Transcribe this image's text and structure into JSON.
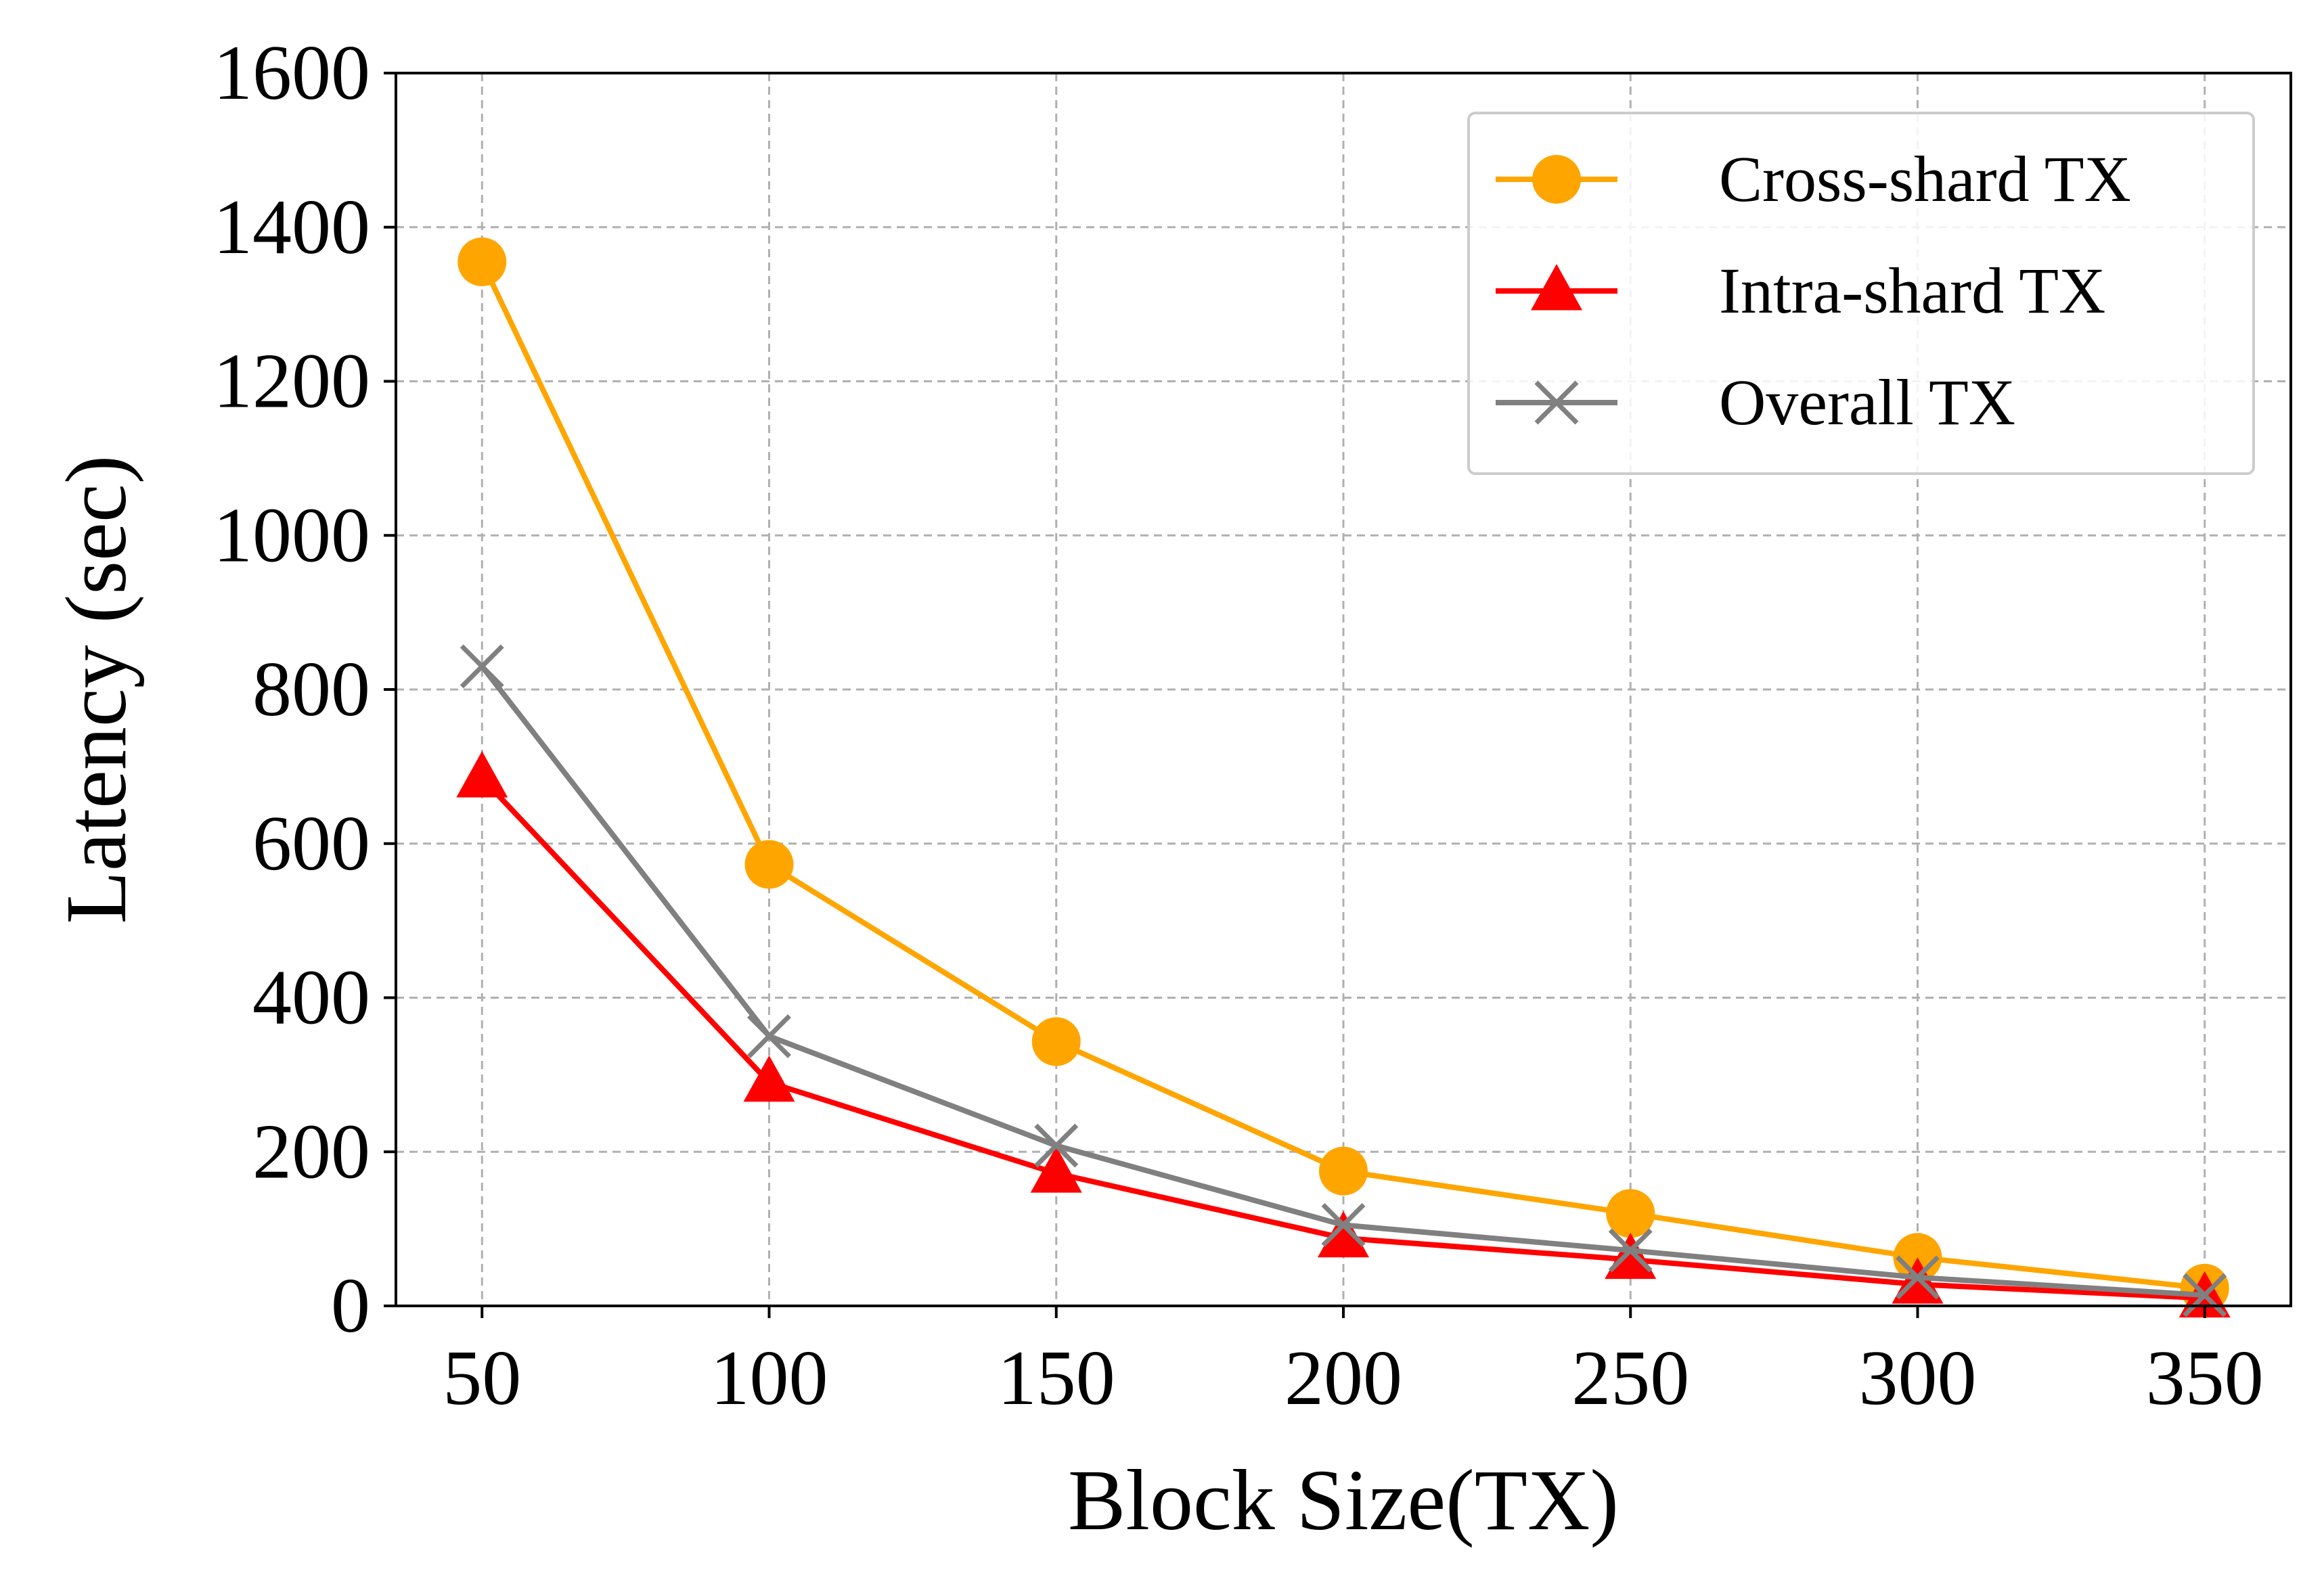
{
  "chart_data": {
    "type": "line",
    "xlabel": "Block Size(TX)",
    "ylabel": "Latency (sec)",
    "x": [
      50,
      100,
      150,
      200,
      250,
      300,
      350
    ],
    "xticks": [
      50,
      100,
      150,
      200,
      250,
      300,
      350
    ],
    "xlim": [
      35,
      365
    ],
    "ylim": [
      0,
      1600
    ],
    "yticks": [
      0,
      200,
      400,
      600,
      800,
      1000,
      1200,
      1400,
      1600
    ],
    "grid": true,
    "legend_position": "top-right",
    "series": [
      {
        "name": "Cross-shard TX",
        "color": "#FFA500",
        "marker": "circle",
        "values": [
          1355,
          573,
          343,
          175,
          120,
          63,
          23
        ]
      },
      {
        "name": "Intra-shard TX",
        "color": "#FF0000",
        "marker": "triangle",
        "values": [
          685,
          290,
          172,
          88,
          60,
          28,
          10
        ]
      },
      {
        "name": "Overall TX",
        "color": "#808080",
        "marker": "x",
        "values": [
          830,
          350,
          208,
          105,
          72,
          37,
          14
        ]
      }
    ]
  }
}
